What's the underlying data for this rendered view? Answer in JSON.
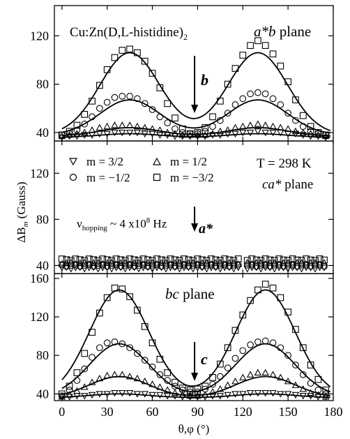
{
  "figure": {
    "x_axis_label": "θ,φ (°)",
    "y_axis_label_main": "ΔB",
    "y_axis_label_sub": "m",
    "y_axis_label_unit": " (Gauss)"
  },
  "legend": {
    "entries": [
      {
        "marker": "triangle-down",
        "label": "m =  3/2"
      },
      {
        "marker": "triangle-up",
        "label": "m =  1/2"
      },
      {
        "marker": "circle",
        "label": "m = −1/2"
      },
      {
        "marker": "square",
        "label": "m = −3/2"
      }
    ]
  },
  "chart_data": [
    {
      "type": "scatter",
      "panel": "top",
      "compound_main": "Cu:Zn(D,L-histidine)",
      "compound_sub": "2",
      "plane_label_italic": "a*b",
      "plane_label_rest": " plane",
      "arrow_label": "b",
      "arrow_at_x": 88,
      "xlim": [
        -5,
        180
      ],
      "ylim": [
        33,
        145
      ],
      "yticks": [
        40,
        80,
        120
      ],
      "series": [
        {
          "name": "m = -3/2",
          "marker": "square",
          "x": [
            0,
            5,
            10,
            15,
            20,
            25,
            30,
            35,
            40,
            45,
            50,
            55,
            60,
            65,
            70,
            75,
            80,
            85,
            90,
            95,
            100,
            105,
            110,
            115,
            120,
            125,
            130,
            135,
            140,
            145,
            150,
            155,
            160,
            165,
            170,
            175
          ],
          "y": [
            38,
            41,
            46,
            55,
            66,
            79,
            92,
            102,
            108,
            109,
            106,
            99,
            89,
            77,
            64,
            52,
            43,
            39,
            40,
            44,
            53,
            66,
            80,
            93,
            104,
            112,
            116,
            112,
            105,
            95,
            82,
            67,
            54,
            45,
            40,
            38
          ]
        },
        {
          "name": "m = -1/2",
          "marker": "circle",
          "x": [
            0,
            5,
            10,
            15,
            20,
            25,
            30,
            35,
            40,
            45,
            50,
            55,
            60,
            65,
            70,
            75,
            80,
            85,
            90,
            95,
            100,
            105,
            110,
            115,
            120,
            125,
            130,
            135,
            140,
            145,
            150,
            155,
            160,
            165,
            170,
            175
          ],
          "y": [
            38,
            39,
            42,
            47,
            53,
            60,
            65,
            69,
            70,
            70,
            68,
            64,
            59,
            53,
            48,
            43,
            40,
            39,
            39,
            41,
            45,
            50,
            56,
            63,
            68,
            72,
            73,
            72,
            68,
            63,
            56,
            50,
            45,
            41,
            39,
            38
          ]
        },
        {
          "name": "m = 1/2",
          "marker": "triangle-up",
          "x": [
            0,
            5,
            10,
            15,
            20,
            25,
            30,
            35,
            40,
            45,
            50,
            55,
            60,
            65,
            70,
            75,
            80,
            85,
            90,
            95,
            100,
            105,
            110,
            115,
            120,
            125,
            130,
            135,
            140,
            145,
            150,
            155,
            160,
            165,
            170,
            175
          ],
          "y": [
            37,
            38,
            39,
            40,
            42,
            44,
            45,
            46,
            46,
            46,
            45,
            44,
            43,
            42,
            40,
            39,
            38,
            38,
            38,
            38,
            39,
            41,
            42,
            44,
            45,
            46,
            47,
            46,
            45,
            44,
            43,
            41,
            40,
            39,
            38,
            37
          ]
        },
        {
          "name": "m = 3/2",
          "marker": "triangle-down",
          "x": [
            0,
            5,
            10,
            15,
            20,
            25,
            30,
            35,
            40,
            45,
            50,
            55,
            60,
            65,
            70,
            75,
            80,
            85,
            90,
            95,
            100,
            105,
            110,
            115,
            120,
            125,
            130,
            135,
            140,
            145,
            150,
            155,
            160,
            165,
            170,
            175
          ],
          "y": [
            36,
            37,
            37,
            38,
            38,
            39,
            39,
            40,
            40,
            40,
            40,
            39,
            39,
            38,
            38,
            37,
            37,
            37,
            37,
            37,
            38,
            38,
            39,
            39,
            40,
            40,
            41,
            40,
            40,
            40,
            39,
            39,
            38,
            37,
            37,
            36
          ]
        }
      ],
      "fit_lines": [
        {
          "peak1_x": 45,
          "peak2_x": 130,
          "min": 38,
          "max": 106,
          "valley": 40
        },
        {
          "peak1_x": 45,
          "peak2_x": 130,
          "min": 38,
          "max": 67,
          "valley": 39
        },
        {
          "peak1_x": 45,
          "peak2_x": 130,
          "min": 37,
          "max": 44,
          "valley": 38
        },
        {
          "peak1_x": 45,
          "peak2_x": 130,
          "min": 36,
          "max": 39,
          "valley": 37
        }
      ]
    },
    {
      "type": "scatter",
      "panel": "middle",
      "temperature_label": "T = 298 K",
      "plane_label_italic": "ca*",
      "plane_label_rest": " plane",
      "hopping_label_main": "ν",
      "hopping_label_sub": "hopping",
      "hopping_label_rest": " ~ 4 x10",
      "hopping_label_sup": "8",
      "hopping_label_unit": " Hz",
      "arrow_label": "a*",
      "arrow_at_x": 88,
      "xlim": [
        -5,
        180
      ],
      "ylim": [
        33,
        148
      ],
      "yticks": [
        40,
        80,
        120
      ],
      "gap": [
        117,
        122
      ],
      "series": [
        {
          "name": "m = -3/2",
          "marker": "square",
          "level": 45
        },
        {
          "name": "m = -1/2",
          "marker": "circle",
          "level": 40
        },
        {
          "name": "m = 1/2",
          "marker": "triangle-up",
          "level": 42
        },
        {
          "name": "m = 3/2",
          "marker": "triangle-down",
          "level": 38
        }
      ]
    },
    {
      "type": "scatter",
      "panel": "bottom",
      "plane_label_italic": "bc",
      "plane_label_rest": " plane",
      "arrow_label": "c",
      "arrow_at_x": 88,
      "xlim": [
        -5,
        180
      ],
      "ylim": [
        33,
        165
      ],
      "yticks": [
        40,
        80,
        120,
        160
      ],
      "xticks": [
        0,
        30,
        60,
        90,
        120,
        150,
        180
      ],
      "series": [
        {
          "name": "m = -3/2",
          "marker": "square",
          "x": [
            0,
            5,
            10,
            15,
            20,
            25,
            30,
            35,
            40,
            45,
            50,
            55,
            60,
            65,
            70,
            75,
            80,
            85,
            90,
            95,
            100,
            105,
            110,
            115,
            120,
            125,
            130,
            135,
            140,
            145,
            150,
            155,
            160,
            165,
            170,
            175
          ],
          "y": [
            40,
            48,
            62,
            82,
            104,
            124,
            140,
            150,
            149,
            141,
            127,
            110,
            93,
            76,
            62,
            52,
            46,
            44,
            45,
            48,
            57,
            71,
            88,
            106,
            122,
            137,
            148,
            154,
            150,
            140,
            125,
            107,
            88,
            70,
            55,
            44
          ]
        },
        {
          "name": "m = -1/2",
          "marker": "circle",
          "x": [
            0,
            5,
            10,
            15,
            20,
            25,
            30,
            35,
            40,
            45,
            50,
            55,
            60,
            65,
            70,
            75,
            80,
            85,
            90,
            95,
            100,
            105,
            110,
            115,
            120,
            125,
            130,
            135,
            140,
            145,
            150,
            155,
            160,
            165,
            170,
            175
          ],
          "y": [
            38,
            44,
            54,
            66,
            78,
            88,
            93,
            94,
            92,
            88,
            82,
            75,
            68,
            60,
            54,
            48,
            44,
            42,
            42,
            45,
            50,
            58,
            67,
            77,
            85,
            91,
            94,
            95,
            93,
            88,
            80,
            70,
            60,
            51,
            44,
            40
          ]
        },
        {
          "name": "m = 1/2",
          "marker": "triangle-up",
          "x": [
            0,
            5,
            10,
            15,
            20,
            25,
            30,
            35,
            40,
            45,
            50,
            55,
            60,
            65,
            70,
            75,
            80,
            85,
            90,
            95,
            100,
            105,
            110,
            115,
            120,
            125,
            130,
            135,
            140,
            145,
            150,
            155,
            160,
            165,
            170,
            175
          ],
          "y": [
            37,
            39,
            43,
            47,
            52,
            56,
            59,
            60,
            60,
            58,
            56,
            53,
            50,
            47,
            44,
            41,
            39,
            38,
            38,
            39,
            42,
            45,
            49,
            53,
            57,
            60,
            62,
            62,
            60,
            57,
            53,
            49,
            45,
            41,
            39,
            37
          ]
        },
        {
          "name": "m = 3/2",
          "marker": "triangle-down",
          "x": [
            0,
            5,
            10,
            15,
            20,
            25,
            30,
            35,
            40,
            45,
            50,
            55,
            60,
            65,
            70,
            75,
            80,
            85,
            90,
            95,
            100,
            105,
            110,
            115,
            120,
            125,
            130,
            135,
            140,
            145,
            150,
            155,
            160,
            165,
            170,
            175
          ],
          "y": [
            37,
            37,
            38,
            38,
            39,
            40,
            40,
            41,
            41,
            41,
            40,
            40,
            39,
            39,
            38,
            38,
            37,
            37,
            37,
            37,
            38,
            38,
            39,
            40,
            40,
            41,
            41,
            41,
            41,
            40,
            40,
            39,
            38,
            38,
            37,
            37
          ]
        }
      ],
      "fit_lines": [
        {
          "peak1_x": 38,
          "peak2_x": 135,
          "min": 37,
          "max": 148,
          "valley": 40
        },
        {
          "peak1_x": 38,
          "peak2_x": 135,
          "min": 37,
          "max": 92,
          "valley": 39
        },
        {
          "peak1_x": 38,
          "peak2_x": 135,
          "min": 36,
          "max": 58,
          "valley": 38
        },
        {
          "peak1_x": 38,
          "peak2_x": 135,
          "min": 36,
          "max": 40,
          "valley": 37
        }
      ]
    }
  ]
}
